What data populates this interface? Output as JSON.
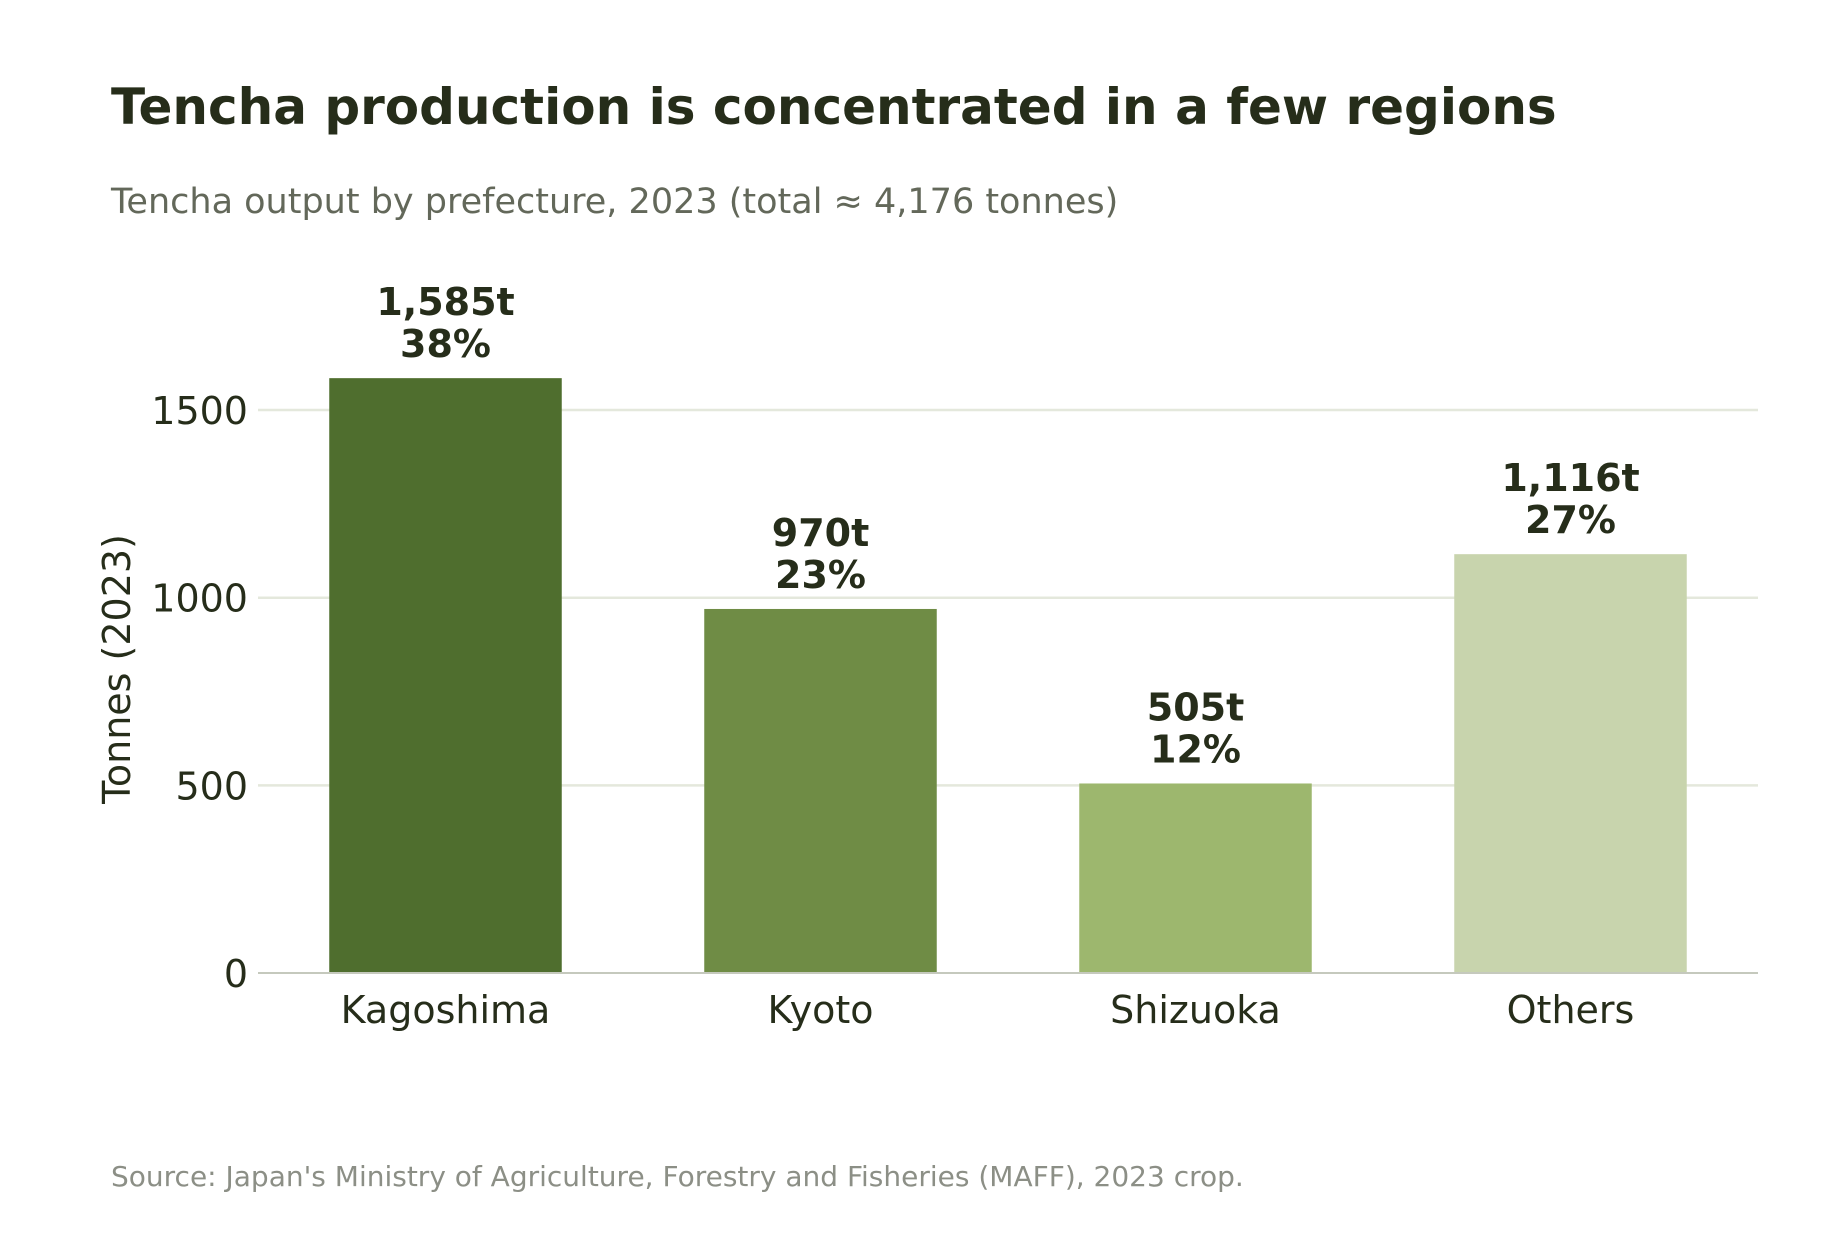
{
  "header": {
    "title": "Tencha production is concentrated in a few regions",
    "subtitle": "Tencha output by prefecture, 2023 (total ≈ 4,176 tonnes)"
  },
  "footer": {
    "source": "Source: Japan's Ministry of Agriculture, Forestry and Fisheries (MAFF), 2023 crop."
  },
  "chart_data": {
    "type": "bar",
    "title": "Tencha production is concentrated in a few regions",
    "subtitle": "Tencha output by prefecture, 2023 (total ≈ 4,176 tonnes)",
    "xlabel": "",
    "ylabel": "Tonnes (2023)",
    "categories": [
      "Kagoshima",
      "Kyoto",
      "Shizuoka",
      "Others"
    ],
    "values": [
      1585,
      970,
      505,
      1116
    ],
    "value_labels": [
      "1,585t",
      "970t",
      "505t",
      "1,116t"
    ],
    "share_labels": [
      "38%",
      "23%",
      "12%",
      "27%"
    ],
    "colors": [
      "#4f6e2e",
      "#6f8c45",
      "#9db76e",
      "#c8d4ad"
    ],
    "ylim": [
      0,
      1700
    ],
    "yticks": [
      0,
      500,
      1000,
      1500
    ],
    "grid": true,
    "gridline_color": "#e4e8dc",
    "axis_color": "#c5c9bd"
  }
}
